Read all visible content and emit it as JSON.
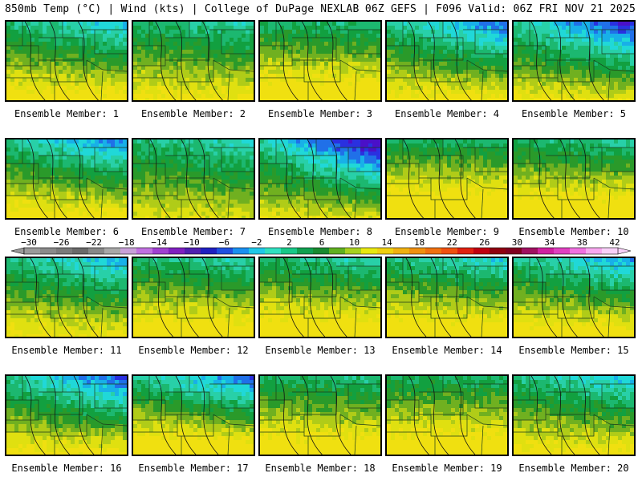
{
  "header": {
    "left_title": "850mb Temp (°C) | Wind (kts) | College of DuPage NEXLAB",
    "right_title": "06Z GEFS | F096 Valid: 06Z FRI NOV 21 2025"
  },
  "colorbar": {
    "ticks": [
      "-30",
      "-26",
      "-22",
      "-18",
      "-14",
      "-10",
      "-6",
      "-2",
      "2",
      "6",
      "10",
      "14",
      "18",
      "22",
      "26",
      "30",
      "34",
      "38",
      "42"
    ],
    "colors": [
      "#9a9a9a",
      "#8a8a8a",
      "#7a7a7a",
      "#6a6a6a",
      "#888888",
      "#a8a8a8",
      "#c8a0d8",
      "#c070e0",
      "#a040d0",
      "#8020c0",
      "#5020b0",
      "#2020c0",
      "#2050e0",
      "#1a90f0",
      "#20c8e8",
      "#30e0c0",
      "#18c888",
      "#10a050",
      "#1a8a30",
      "#60b020",
      "#a8d020",
      "#e8e810",
      "#f0d010",
      "#f0b010",
      "#f09010",
      "#f07010",
      "#f05010",
      "#e02010",
      "#c00010",
      "#900010",
      "#800020",
      "#a01060",
      "#d020a0",
      "#e040c0",
      "#f070e0",
      "#f8a8f0",
      "#f8d0f8"
    ]
  },
  "panels": [
    {
      "label": "Ensemble Member: 1",
      "cold": 0.35,
      "warm": 0.55
    },
    {
      "label": "Ensemble Member: 2",
      "cold": 0.2,
      "warm": 0.45
    },
    {
      "label": "Ensemble Member: 3",
      "cold": 0.1,
      "warm": 0.7
    },
    {
      "label": "Ensemble Member: 4",
      "cold": 0.55,
      "warm": 0.5
    },
    {
      "label": "Ensemble Member: 5",
      "cold": 0.7,
      "warm": 0.4
    },
    {
      "label": "Ensemble Member: 6",
      "cold": 0.5,
      "warm": 0.55
    },
    {
      "label": "Ensemble Member: 7",
      "cold": 0.25,
      "warm": 0.3
    },
    {
      "label": "Ensemble Member: 8",
      "cold": 0.85,
      "warm": 0.35
    },
    {
      "label": "Ensemble Member: 9",
      "cold": 0.05,
      "warm": 0.85
    },
    {
      "label": "Ensemble Member: 10",
      "cold": 0.15,
      "warm": 0.75
    },
    {
      "label": "Ensemble Member: 11",
      "cold": 0.4,
      "warm": 0.45
    },
    {
      "label": "Ensemble Member: 12",
      "cold": 0.2,
      "warm": 0.65
    },
    {
      "label": "Ensemble Member: 13",
      "cold": 0.2,
      "warm": 0.7
    },
    {
      "label": "Ensemble Member: 14",
      "cold": 0.3,
      "warm": 0.7
    },
    {
      "label": "Ensemble Member: 15",
      "cold": 0.45,
      "warm": 0.6
    },
    {
      "label": "Ensemble Member: 16",
      "cold": 0.6,
      "warm": 0.5
    },
    {
      "label": "Ensemble Member: 17",
      "cold": 0.55,
      "warm": 0.75
    },
    {
      "label": "Ensemble Member: 18",
      "cold": 0.1,
      "warm": 0.65
    },
    {
      "label": "Ensemble Member: 19",
      "cold": 0.05,
      "warm": 0.7
    },
    {
      "label": "Ensemble Member: 20",
      "cold": 0.35,
      "warm": 0.5
    }
  ]
}
